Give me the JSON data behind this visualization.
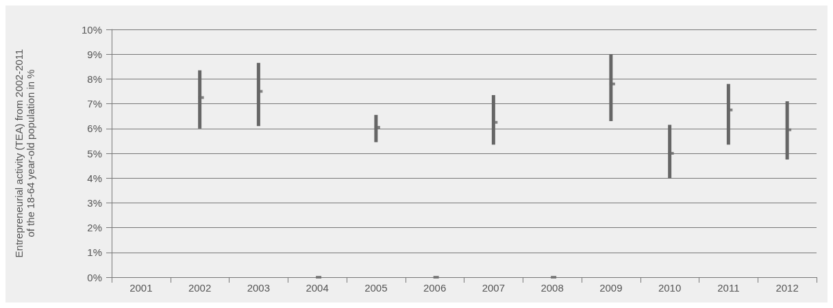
{
  "chart_data": {
    "type": "scatter",
    "ylabel": "Entrepreneurial activity (TEA) from 2002-2011\nof the 18-64 year-old population in %",
    "categories": [
      "2001",
      "2002",
      "2003",
      "2004",
      "2005",
      "2006",
      "2007",
      "2008",
      "2009",
      "2010",
      "2011",
      "2012"
    ],
    "values": [
      null,
      7.25,
      7.5,
      0,
      6.05,
      0,
      6.25,
      0,
      7.8,
      5.0,
      6.75,
      5.95
    ],
    "errors": [
      null,
      [
        6.0,
        8.35
      ],
      [
        6.1,
        8.65
      ],
      null,
      [
        5.45,
        6.55
      ],
      null,
      [
        5.35,
        7.35
      ],
      null,
      [
        6.3,
        9.0
      ],
      [
        4.0,
        6.15
      ],
      [
        5.35,
        7.8
      ],
      [
        4.75,
        7.1
      ]
    ],
    "color": "#666666",
    "marker": "square",
    "grid": "y",
    "ylim": [
      0,
      10
    ],
    "yticks": [
      {
        "value": 0,
        "label": "0%"
      },
      {
        "value": 1,
        "label": "1%"
      },
      {
        "value": 2,
        "label": "2%"
      },
      {
        "value": 3,
        "label": "3%"
      },
      {
        "value": 4,
        "label": "4%"
      },
      {
        "value": 5,
        "label": "5%"
      },
      {
        "value": 6,
        "label": "6%"
      },
      {
        "value": 7,
        "label": "7%"
      },
      {
        "value": 8,
        "label": "8%"
      },
      {
        "value": 9,
        "label": "9%"
      },
      {
        "value": 10,
        "label": "10%"
      }
    ]
  }
}
